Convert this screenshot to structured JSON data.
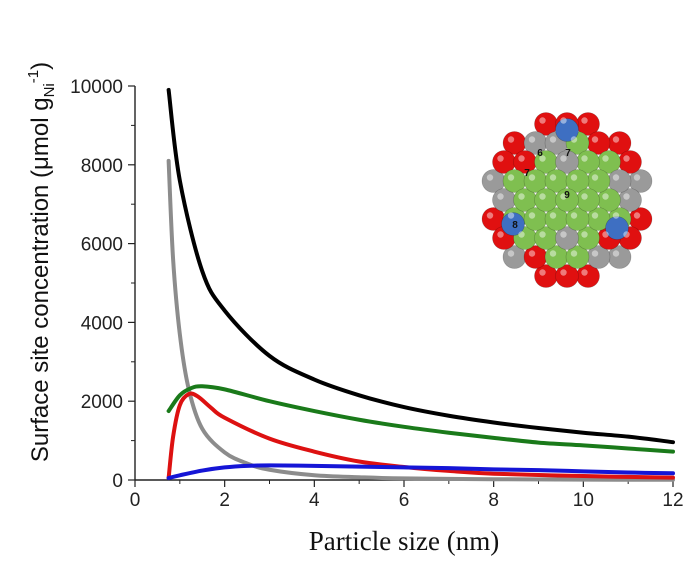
{
  "chart_data": {
    "type": "line",
    "title": "",
    "xlabel": "Particle size (nm)",
    "ylabel": {
      "main": "Surface site concentration (μmol g",
      "subscript": "Ni",
      "superscript": "-1",
      "close": ")"
    },
    "xlim": [
      0,
      12
    ],
    "ylim": [
      0,
      10000
    ],
    "x_ticks": [
      0,
      2,
      4,
      6,
      8,
      10,
      12
    ],
    "y_ticks": [
      0,
      2000,
      4000,
      6000,
      8000,
      10000
    ],
    "x_ticks_labels": [
      "0",
      "2",
      "4",
      "6",
      "8",
      "10",
      "12"
    ],
    "y_ticks_labels": [
      "0",
      "2000",
      "4000",
      "6000",
      "8000",
      "10000"
    ],
    "grid": false,
    "legend": "none",
    "series": [
      {
        "color": "#000000",
        "x": [
          0.75,
          1.0,
          1.5,
          2.0,
          3.0,
          4.0,
          5.0,
          6.0,
          7.0,
          8.0,
          9.0,
          10.0,
          11.0,
          12.0
        ],
        "y": [
          9900,
          7600,
          5300,
          4300,
          3150,
          2550,
          2150,
          1850,
          1630,
          1460,
          1320,
          1200,
          1100,
          960
        ]
      },
      {
        "color": "#8c8c8c",
        "x": [
          0.75,
          0.85,
          1.0,
          1.2,
          1.5,
          2.0,
          2.5,
          3.0,
          4.0,
          5.0,
          6.0,
          8.0,
          10.0,
          12.0
        ],
        "y": [
          8100,
          5600,
          3700,
          2300,
          1300,
          700,
          420,
          260,
          120,
          70,
          40,
          20,
          10,
          5
        ]
      },
      {
        "color": "#1a7a1a",
        "x": [
          0.75,
          1.0,
          1.25,
          1.5,
          2.0,
          3.0,
          4.0,
          5.0,
          6.0,
          7.0,
          8.0,
          9.0,
          10.0,
          11.0,
          12.0
        ],
        "y": [
          1750,
          2150,
          2330,
          2380,
          2300,
          2000,
          1750,
          1530,
          1350,
          1200,
          1070,
          950,
          880,
          800,
          720
        ]
      },
      {
        "color": "#dd1111",
        "x": [
          0.75,
          0.85,
          1.0,
          1.2,
          1.4,
          1.7,
          2.0,
          3.0,
          4.0,
          5.0,
          6.0,
          7.0,
          8.0,
          10.0,
          12.0
        ],
        "y": [
          50,
          1100,
          1900,
          2180,
          2120,
          1830,
          1580,
          1050,
          720,
          470,
          330,
          230,
          160,
          100,
          60
        ]
      },
      {
        "color": "#1515d6",
        "x": [
          0.75,
          1.0,
          1.5,
          2.0,
          2.5,
          3.0,
          4.0,
          5.0,
          6.0,
          7.0,
          8.0,
          9.0,
          10.0,
          11.0,
          12.0
        ],
        "y": [
          50,
          120,
          240,
          320,
          360,
          370,
          360,
          340,
          320,
          300,
          270,
          250,
          220,
          190,
          170
        ]
      }
    ]
  },
  "inset": {
    "atom_labels": [
      "6",
      "7",
      "7",
      "9",
      "8"
    ],
    "colors": {
      "green": "#7fbf50",
      "red": "#e01010",
      "gray": "#9a9a9a",
      "blue": "#3e6fc2"
    }
  }
}
